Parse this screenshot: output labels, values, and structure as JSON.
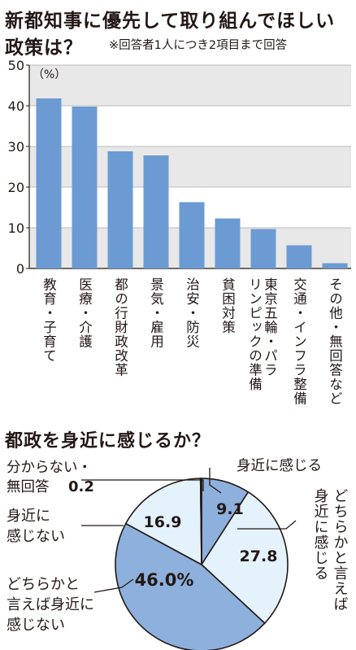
{
  "chart_data": [
    {
      "type": "bar",
      "title": "新都知事に優先して取り組んでほしい政策は？",
      "note": "※回答者1人につき2項目まで回答",
      "unit": "（%）",
      "ylim": [
        0,
        50
      ],
      "yticks": [
        0,
        10,
        20,
        30,
        40,
        50
      ],
      "categories": [
        [
          "教育・子育て"
        ],
        [
          "医療・介護"
        ],
        [
          "都の行財政改革"
        ],
        [
          "景気・雇用"
        ],
        [
          "治安・防災"
        ],
        [
          "貧困対策"
        ],
        [
          "東京五輪・パラ",
          "リンピックの準備"
        ],
        [
          "交通・インフラ整備"
        ],
        [
          "その他・無回答など"
        ]
      ],
      "values": [
        41.8,
        39.8,
        28.8,
        27.8,
        16.3,
        12.3,
        9.7,
        5.7,
        1.3
      ],
      "bar_color": "#6b9bd2",
      "grid_band_color": "#e8e8e9"
    },
    {
      "type": "pie",
      "title": "都政を身近に感じるか？",
      "slices": [
        {
          "label": "身近に感じる",
          "value": 9.1,
          "display": "9.1",
          "color": "#8db0dd"
        },
        {
          "label": "どちらかと言えば身近に感じる",
          "value": 27.8,
          "display": "27.8",
          "color": "#e3f2fb"
        },
        {
          "label": "どちらかと言えば身近に感じない",
          "value": 46.0,
          "display": "46.0%",
          "color": "#8db0dd"
        },
        {
          "label": "身近に感じない",
          "value": 16.9,
          "display": "16.9",
          "color": "#e3f2fb"
        },
        {
          "label": "分からない・無回答",
          "value": 0.2,
          "display": "0.2",
          "color": "#e3f2fb"
        }
      ],
      "labels": {
        "s1": "身近に感じる",
        "s2": [
          "どちらかと言えば",
          "身近に感じる"
        ],
        "s3": [
          "どちらかと",
          "言えば身近に",
          "感じない"
        ],
        "s4": [
          "身近に",
          "感じない"
        ],
        "s5": [
          "分からない・",
          "無回答"
        ]
      }
    }
  ]
}
